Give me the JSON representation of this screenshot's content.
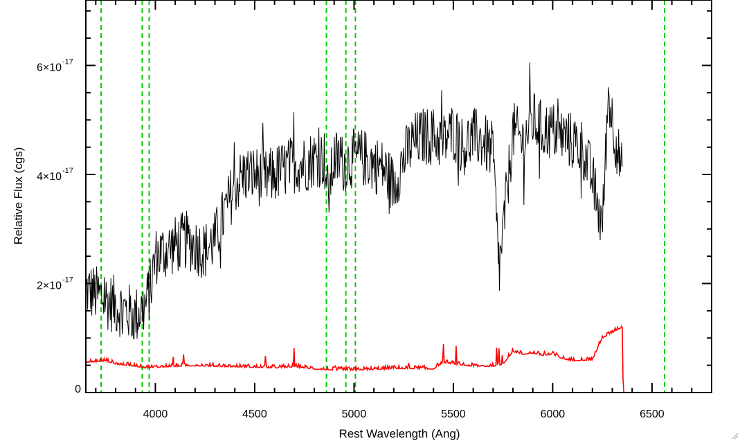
{
  "chart_data": {
    "type": "line",
    "xlabel": "Rest Wavelength (Ang)",
    "ylabel": "Relative Flux (cgs)",
    "xlim": [
      3650,
      6800
    ],
    "ylim": [
      0,
      7.2e-17
    ],
    "x_ticks": [
      {
        "value": 4000,
        "label": "4000"
      },
      {
        "value": 4500,
        "label": "4500"
      },
      {
        "value": 5000,
        "label": "5000"
      },
      {
        "value": 5500,
        "label": "5500"
      },
      {
        "value": 6000,
        "label": "6000"
      },
      {
        "value": 6500,
        "label": "6500"
      }
    ],
    "y_ticks": [
      {
        "value": 0,
        "mantissa": "0",
        "exponent": ""
      },
      {
        "value": 2e-17,
        "mantissa": "2×10",
        "exponent": "-17"
      },
      {
        "value": 4e-17,
        "mantissa": "4×10",
        "exponent": "-17"
      },
      {
        "value": 6e-17,
        "mantissa": "6×10",
        "exponent": "-17"
      }
    ],
    "vlines": [
      3727,
      3934,
      3969,
      4861,
      4959,
      5007,
      6563
    ],
    "vline_color": "#00cc00",
    "series": [
      {
        "color": "#000000",
        "x": [
          3650,
          3700,
          3750,
          3800,
          3850,
          3900,
          3950,
          3980,
          4000,
          4100,
          4150,
          4200,
          4250,
          4300,
          4350,
          4400,
          4450,
          4500,
          4550,
          4600,
          4650,
          4700,
          4750,
          4800,
          4850,
          4870,
          4900,
          4950,
          5000,
          5050,
          5100,
          5150,
          5200,
          5250,
          5300,
          5350,
          5400,
          5450,
          5500,
          5550,
          5600,
          5650,
          5700,
          5730,
          5800,
          5850,
          5900,
          5950,
          6000,
          6050,
          6100,
          6150,
          6200,
          6250,
          6280,
          6300,
          6350
        ],
        "y": [
          1.9e-17,
          1.8e-17,
          1.7e-17,
          1.6e-17,
          1.5e-17,
          1.4e-17,
          1.6e-17,
          2e-17,
          2.5e-17,
          2.7e-17,
          2.8e-17,
          2.7e-17,
          2.6e-17,
          2.8e-17,
          3.3e-17,
          3.8e-17,
          4e-17,
          4e-17,
          3.9e-17,
          4e-17,
          4.1e-17,
          4.2e-17,
          4.2e-17,
          4.3e-17,
          4.3e-17,
          3.6e-17,
          4.3e-17,
          4.2e-17,
          4.3e-17,
          4.3e-17,
          4.2e-17,
          4.1e-17,
          3.8e-17,
          4.3e-17,
          4.6e-17,
          4.7e-17,
          4.7e-17,
          4.6e-17,
          4.8e-17,
          4.5e-17,
          4.7e-17,
          4.6e-17,
          4.4e-17,
          2.2e-17,
          4.8e-17,
          4.6e-17,
          5e-17,
          4.8e-17,
          4.8e-17,
          4.7e-17,
          4.6e-17,
          4.5e-17,
          3.9e-17,
          3e-17,
          5.5e-17,
          5e-17,
          4e-17
        ]
      },
      {
        "color": "#ff0000",
        "x": [
          3650,
          3750,
          3800,
          3850,
          3900,
          3950,
          4000,
          4050,
          4100,
          4200,
          4300,
          4400,
          4500,
          4600,
          4700,
          4800,
          4900,
          5000,
          5100,
          5200,
          5300,
          5400,
          5450,
          5500,
          5550,
          5600,
          5700,
          5750,
          5800,
          5850,
          5900,
          5950,
          6000,
          6050,
          6100,
          6200,
          6250,
          6300,
          6350,
          6355,
          6400,
          6500,
          6600,
          6700,
          6800
        ],
        "y": [
          5.5e-18,
          5.8e-18,
          5.2e-18,
          5e-18,
          4.8e-18,
          4.5e-18,
          4.6e-18,
          4.7e-18,
          4.8e-18,
          4.9e-18,
          4.8e-18,
          4.7e-18,
          4.6e-18,
          4.5e-18,
          4.7e-18,
          4.3e-18,
          4.1e-18,
          4.1e-18,
          4.2e-18,
          4.4e-18,
          4.4e-18,
          4.3e-18,
          5.5e-18,
          5.2e-18,
          5e-18,
          4.8e-18,
          4.8e-18,
          5.2e-18,
          7.5e-18,
          7e-18,
          7.2e-18,
          6.8e-18,
          7e-18,
          6.2e-18,
          5.8e-18,
          6e-18,
          1e-17,
          1.1e-17,
          1.2e-17,
          0,
          0,
          0,
          0,
          0,
          0
        ]
      }
    ]
  }
}
